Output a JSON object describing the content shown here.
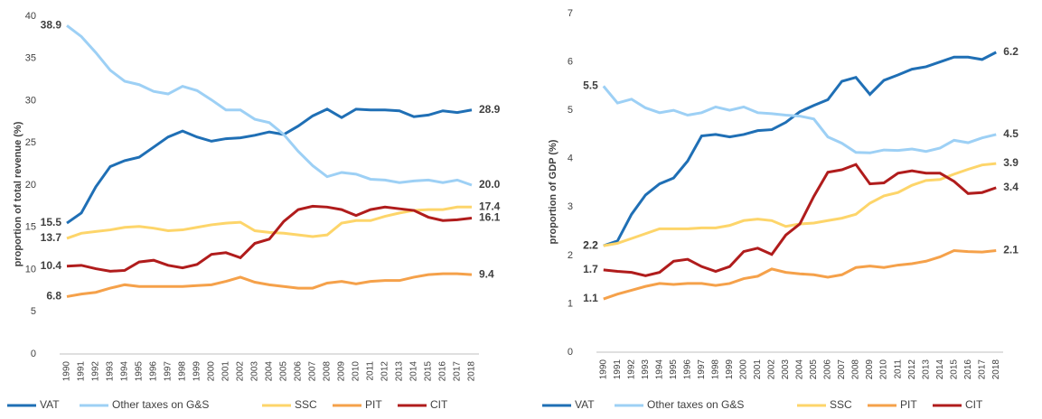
{
  "chart_data": [
    {
      "type": "line",
      "y_label": "proportion of total revenue (%)",
      "categories": [
        "1990",
        "1991",
        "1992",
        "1993",
        "1994",
        "1995",
        "1996",
        "1997",
        "1998",
        "1999",
        "2000",
        "2001",
        "2002",
        "2003",
        "2004",
        "2005",
        "2006",
        "2007",
        "2008",
        "2009",
        "2010",
        "2011",
        "2012",
        "2013",
        "2014",
        "2015",
        "2016",
        "2017",
        "2018"
      ],
      "ylim": [
        0,
        40
      ],
      "yticks": [
        0,
        5,
        10,
        15,
        20,
        25,
        30,
        35,
        40
      ],
      "series": [
        {
          "name": "VAT",
          "color": "#1f6fb5",
          "values": [
            15.5,
            16.7,
            19.8,
            22.2,
            22.9,
            23.3,
            24.5,
            25.7,
            26.4,
            25.7,
            25.2,
            25.5,
            25.6,
            25.9,
            26.3,
            26.0,
            27.0,
            28.2,
            29.0,
            28.0,
            29.0,
            28.9,
            28.9,
            28.8,
            28.1,
            28.3,
            28.8,
            28.6,
            28.9
          ]
        },
        {
          "name": "Other taxes on G&S",
          "color": "#9dd0f5",
          "values": [
            38.9,
            37.6,
            35.7,
            33.6,
            32.3,
            31.9,
            31.1,
            30.8,
            31.7,
            31.2,
            30.1,
            28.9,
            28.9,
            27.8,
            27.4,
            26.0,
            24.0,
            22.3,
            21.0,
            21.5,
            21.3,
            20.7,
            20.6,
            20.3,
            20.5,
            20.6,
            20.3,
            20.6,
            20.0
          ],
          "value_labels": [
            "38.9",
            null,
            null,
            null,
            null,
            null,
            null,
            null,
            null,
            null,
            null,
            null,
            null,
            null,
            null,
            null,
            null,
            null,
            null,
            null,
            null,
            null,
            null,
            null,
            null,
            null,
            null,
            null,
            "20.0"
          ]
        },
        {
          "name": "SSC",
          "color": "#fdd56a",
          "values": [
            13.7,
            14.3,
            14.5,
            14.7,
            15.0,
            15.1,
            14.9,
            14.6,
            14.7,
            15.0,
            15.3,
            15.5,
            15.6,
            14.6,
            14.4,
            14.3,
            14.1,
            13.9,
            14.1,
            15.5,
            15.8,
            15.8,
            16.3,
            16.7,
            17.0,
            17.1,
            17.1,
            17.4,
            17.4
          ]
        },
        {
          "name": "PIT",
          "color": "#f5a14a",
          "values": [
            6.8,
            7.1,
            7.3,
            7.8,
            8.2,
            8.0,
            8.0,
            8.0,
            8.0,
            8.1,
            8.2,
            8.6,
            9.1,
            8.5,
            8.2,
            8.0,
            7.8,
            7.8,
            8.4,
            8.6,
            8.3,
            8.6,
            8.7,
            8.7,
            9.1,
            9.4,
            9.5,
            9.5,
            9.4
          ]
        },
        {
          "name": "CIT",
          "color": "#b01c1c",
          "values": [
            10.4,
            10.5,
            10.1,
            9.8,
            9.9,
            10.9,
            11.1,
            10.5,
            10.2,
            10.6,
            11.8,
            12.0,
            11.4,
            13.1,
            13.6,
            15.7,
            17.1,
            17.5,
            17.4,
            17.1,
            16.4,
            17.1,
            17.4,
            17.2,
            17.0,
            16.2,
            15.8,
            15.9,
            16.1
          ]
        }
      ]
    },
    {
      "type": "line",
      "y_label": "proportion of GDP (%)",
      "categories": [
        "1990",
        "1991",
        "1992",
        "1993",
        "1994",
        "1995",
        "1996",
        "1997",
        "1998",
        "1999",
        "2000",
        "2001",
        "2002",
        "2003",
        "2004",
        "2005",
        "2006",
        "2007",
        "2008",
        "2009",
        "2010",
        "2011",
        "2012",
        "2013",
        "2014",
        "2015",
        "2016",
        "2017",
        "2018"
      ],
      "ylim": [
        0,
        7
      ],
      "yticks": [
        0,
        1,
        2,
        3,
        4,
        5,
        6,
        7
      ],
      "series": [
        {
          "name": "VAT",
          "color": "#1f6fb5",
          "values": [
            2.2,
            2.3,
            2.85,
            3.25,
            3.48,
            3.6,
            3.95,
            4.47,
            4.5,
            4.45,
            4.5,
            4.58,
            4.6,
            4.75,
            4.97,
            5.1,
            5.22,
            5.6,
            5.68,
            5.33,
            5.62,
            5.73,
            5.85,
            5.9,
            6.0,
            6.1,
            6.1,
            6.05,
            6.2
          ]
        },
        {
          "name": "Other taxes on G&S",
          "color": "#9dd0f5",
          "values": [
            5.5,
            5.15,
            5.23,
            5.05,
            4.95,
            5.0,
            4.9,
            4.95,
            5.07,
            5.0,
            5.07,
            4.95,
            4.93,
            4.9,
            4.88,
            4.82,
            4.45,
            4.32,
            4.13,
            4.12,
            4.18,
            4.17,
            4.2,
            4.15,
            4.22,
            4.38,
            4.33,
            4.43,
            4.5
          ]
        },
        {
          "name": "SSC",
          "color": "#fdd56a",
          "values": [
            2.2,
            2.25,
            2.35,
            2.45,
            2.55,
            2.55,
            2.55,
            2.57,
            2.57,
            2.62,
            2.72,
            2.75,
            2.72,
            2.6,
            2.65,
            2.67,
            2.72,
            2.77,
            2.85,
            3.08,
            3.23,
            3.3,
            3.45,
            3.55,
            3.57,
            3.68,
            3.78,
            3.87,
            3.9
          ]
        },
        {
          "name": "PIT",
          "color": "#f5a14a",
          "values": [
            1.1,
            1.2,
            1.28,
            1.36,
            1.42,
            1.4,
            1.42,
            1.42,
            1.38,
            1.42,
            1.52,
            1.57,
            1.72,
            1.65,
            1.62,
            1.6,
            1.55,
            1.6,
            1.75,
            1.78,
            1.75,
            1.8,
            1.83,
            1.88,
            1.97,
            2.1,
            2.08,
            2.07,
            2.1
          ]
        },
        {
          "name": "CIT",
          "color": "#b01c1c",
          "values": [
            1.7,
            1.67,
            1.65,
            1.58,
            1.65,
            1.88,
            1.92,
            1.77,
            1.67,
            1.77,
            2.08,
            2.15,
            2.02,
            2.42,
            2.65,
            3.22,
            3.72,
            3.77,
            3.88,
            3.48,
            3.5,
            3.7,
            3.75,
            3.7,
            3.7,
            3.53,
            3.28,
            3.3,
            3.4
          ]
        }
      ]
    }
  ]
}
